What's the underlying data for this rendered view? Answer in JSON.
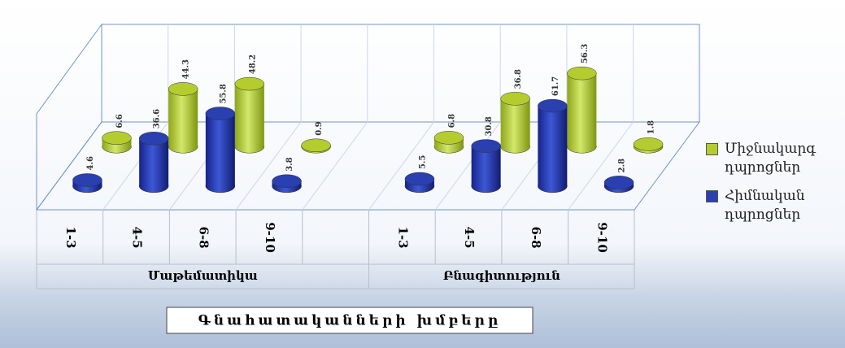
{
  "chart_data": {
    "type": "bar3d_cylinder",
    "x_label": "Գնահատականների խմբերը",
    "groups": [
      "Մաթեմատիկա",
      "Բնագիտություն"
    ],
    "categories": [
      "1-3",
      "4-5",
      "6-8",
      "9-10",
      null,
      "1-3",
      "4-5",
      "6-8",
      "9-10"
    ],
    "series": [
      {
        "name": "Միջնակարգ դպրոցներ",
        "color": "#b5cc2e",
        "values": [
          6.6,
          44.3,
          48.2,
          0.9,
          null,
          6.8,
          36.8,
          56.3,
          1.8
        ]
      },
      {
        "name": "Հիմնական դպրոցներ",
        "color": "#2a3fb0",
        "values": [
          4.6,
          36.6,
          55.8,
          3.8,
          null,
          5.5,
          30.8,
          61.7,
          2.8
        ]
      }
    ],
    "legend": "right"
  }
}
